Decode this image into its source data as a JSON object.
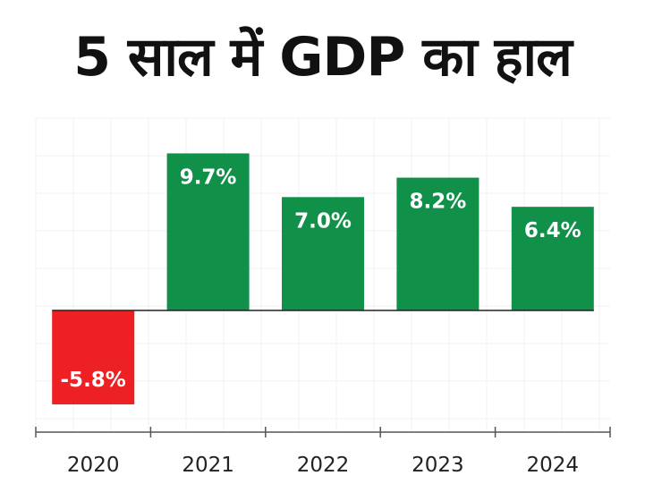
{
  "title": "5 साल में GDP का हाल",
  "colors": {
    "positive": "#11904a",
    "negative": "#ed2024",
    "zero_line": "#222222",
    "axis": "#555555",
    "grid": "#f0f0f0"
  },
  "chart_data": {
    "type": "bar",
    "title": "5 साल में GDP का हाल",
    "categories": [
      "2020",
      "2021",
      "2022",
      "2023",
      "2024"
    ],
    "values": [
      -5.8,
      9.7,
      7.0,
      8.2,
      6.4
    ],
    "data_labels": [
      "-5.8%",
      "9.7%",
      "7.0%",
      "8.2%",
      "6.4%"
    ],
    "xlabel": "",
    "ylabel": "",
    "ylim": [
      -7.3,
      10.3
    ],
    "grid": true,
    "legend": "none"
  }
}
